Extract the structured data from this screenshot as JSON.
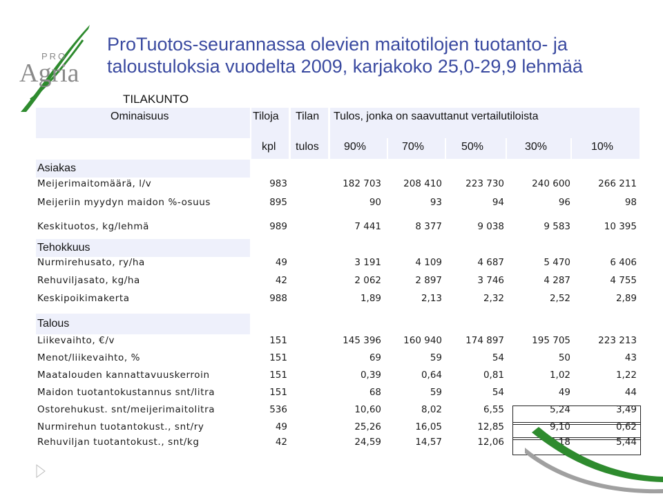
{
  "logo": {
    "top_text": "PRO",
    "main_text": "Agria"
  },
  "title": {
    "line1": "ProTuotos-seurannassa olevien maitotilojen tuotanto- ja",
    "line2": "taloustuloksia vuodelta 2009, karjakoko 25,0-29,9 lehmää"
  },
  "section": "TILAKUNTO",
  "header": {
    "col_property": "Ominaisuus",
    "col_farms": "Tiloja",
    "col_result": "Tilan",
    "col_group": "Tulos, jonka on saavuttanut vertailutiloista",
    "sub_kpl": "kpl",
    "sub_tulos": "tulos",
    "percentiles": [
      "90%",
      "70%",
      "50%",
      "30%",
      "10%"
    ]
  },
  "groups": {
    "asiakas": "Asiakas",
    "tehokkuus": "Tehokkuus",
    "talous": "Talous"
  },
  "rows": [
    {
      "label": "Meijerimaitomäärä, l/v",
      "kpl": "983",
      "values": [
        "182 703",
        "208 410",
        "223 730",
        "240 600",
        "266 211"
      ]
    },
    {
      "label": "Meijeriin myydyn maidon %-osuus",
      "kpl": "895",
      "values": [
        "90",
        "93",
        "94",
        "96",
        "98"
      ]
    },
    {
      "label": "Keskituotos, kg/lehmä",
      "kpl": "989",
      "values": [
        "7 441",
        "8 377",
        "9 038",
        "9 583",
        "10 395"
      ]
    },
    {
      "label": "Nurmirehusato, ry/ha",
      "kpl": "49",
      "values": [
        "3 191",
        "4 109",
        "4 687",
        "5 470",
        "6 406"
      ]
    },
    {
      "label": "Rehuviljasato, kg/ha",
      "kpl": "42",
      "values": [
        "2 062",
        "2 897",
        "3 746",
        "4 287",
        "4 755"
      ]
    },
    {
      "label": "Keskipoikimakerta",
      "kpl": "988",
      "values": [
        "1,89",
        "2,13",
        "2,32",
        "2,52",
        "2,89"
      ]
    },
    {
      "label": "Liikevaihto, €/v",
      "kpl": "151",
      "values": [
        "145 396",
        "160 940",
        "174 897",
        "195 705",
        "223 213"
      ]
    },
    {
      "label": "Menot/liikevaihto, %",
      "kpl": "151",
      "values": [
        "69",
        "59",
        "54",
        "50",
        "43"
      ]
    },
    {
      "label": "Maatalouden kannattavuuskerroin",
      "kpl": "151",
      "values": [
        "0,39",
        "0,64",
        "0,81",
        "1,02",
        "1,22"
      ]
    },
    {
      "label": "Maidon tuotantokustannus snt/litra",
      "kpl": "151",
      "values": [
        "68",
        "59",
        "54",
        "49",
        "44"
      ]
    },
    {
      "label": "Ostorehukust. snt/meijerimaitolitra",
      "kpl": "536",
      "values": [
        "10,60",
        "8,02",
        "6,55",
        "5,24",
        "3,49"
      ]
    },
    {
      "label": "Nurmirehun tuotantokust., snt/ry",
      "kpl": "49",
      "values": [
        "25,26",
        "16,05",
        "12,85",
        "9,10",
        "0,62"
      ]
    },
    {
      "label": "Rehuviljan tuotantokust., snt/kg",
      "kpl": "42",
      "values": [
        "24,59",
        "14,57",
        "12,06",
        "8,18",
        "5,44"
      ]
    }
  ],
  "colors": {
    "title": "#3a4aa0",
    "header_bg": "#eef0fb",
    "logo_green": "#2e8b2e",
    "logo_grey": "#9a9a9a"
  }
}
